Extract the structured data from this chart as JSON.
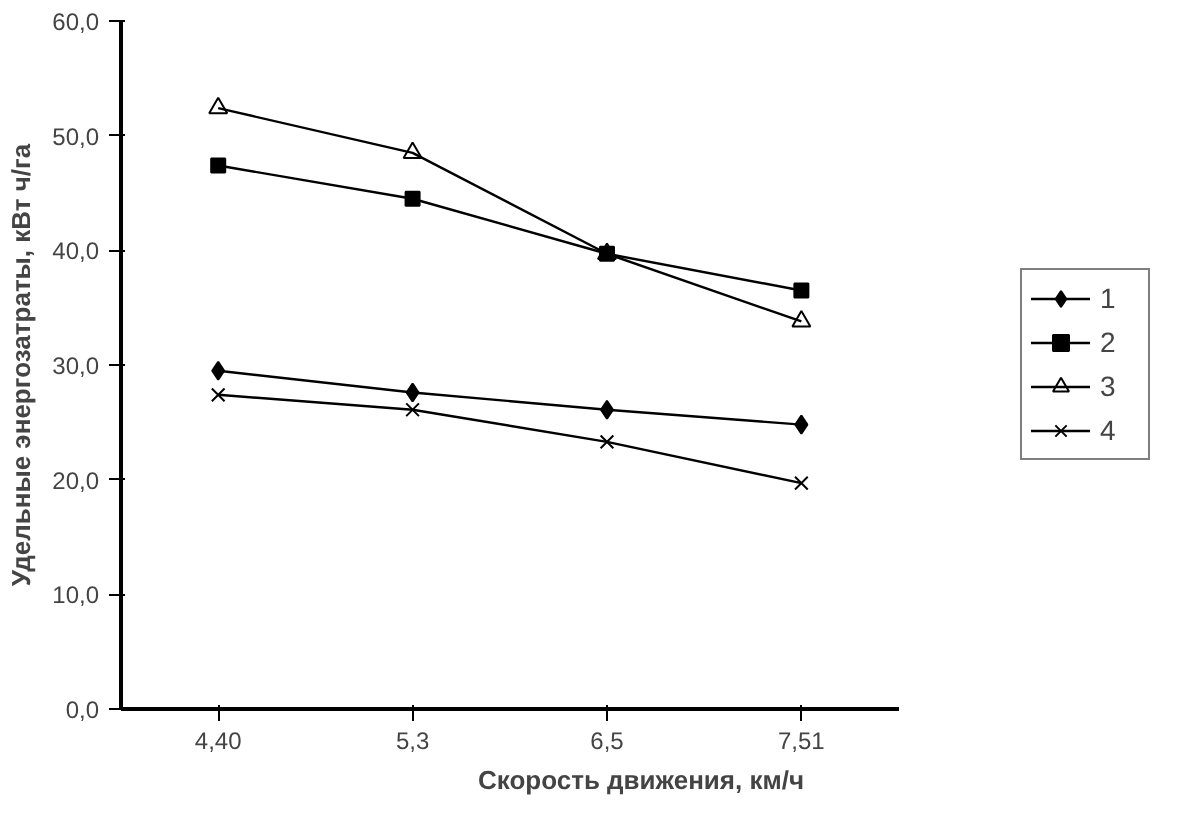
{
  "chart_data": {
    "type": "line",
    "xlabel": "Скорость движения, км/ч",
    "ylabel": "Удельные энергозатраты, кВт ч/га",
    "categories": [
      "4,40",
      "5,3",
      "6,5",
      "7,51"
    ],
    "ylim": [
      0,
      60
    ],
    "yticks": [
      {
        "value": 0,
        "label": "0,0"
      },
      {
        "value": 10,
        "label": "10,0"
      },
      {
        "value": 20,
        "label": "20,0"
      },
      {
        "value": 30,
        "label": "30,0"
      },
      {
        "value": 40,
        "label": "40,0"
      },
      {
        "value": 50,
        "label": "50,0"
      },
      {
        "value": 60,
        "label": "60,0"
      }
    ],
    "grid": false,
    "legend": "right",
    "line_style": "solid",
    "series": [
      {
        "name": "1",
        "color": "#000000",
        "marker": "diamond",
        "values": [
          29.5,
          27.6,
          26.1,
          24.8
        ]
      },
      {
        "name": "2",
        "color": "#000000",
        "marker": "square",
        "values": [
          47.4,
          44.5,
          39.7,
          36.5
        ]
      },
      {
        "name": "3",
        "color": "#000000",
        "marker": "triangle",
        "values": [
          52.4,
          48.5,
          39.7,
          33.8
        ]
      },
      {
        "name": "4",
        "color": "#000000",
        "marker": "cross",
        "values": [
          27.4,
          26.1,
          23.3,
          19.7
        ]
      }
    ]
  }
}
